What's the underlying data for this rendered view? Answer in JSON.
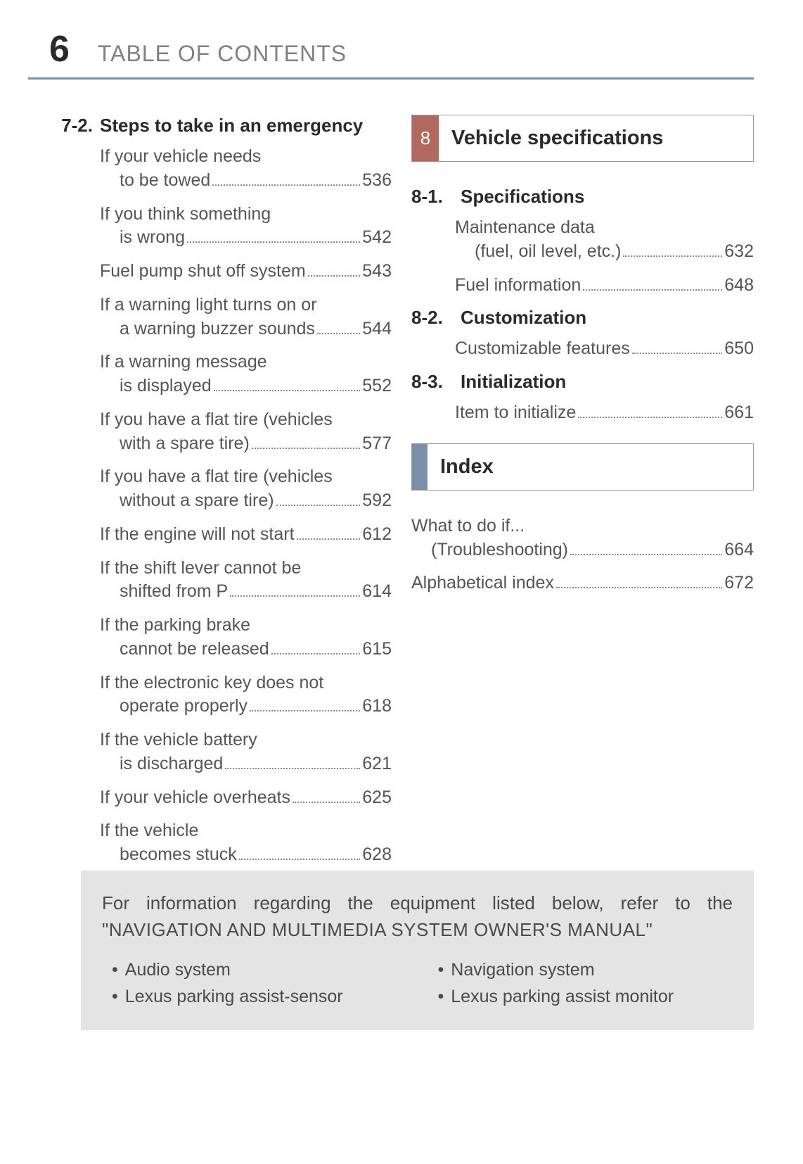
{
  "page_number": "6",
  "header_title": "TABLE OF CONTENTS",
  "colors": {
    "rule": "#7a8fa8",
    "chapter_badge": "#b0685f",
    "index_badge": "#7a8fa8",
    "footer_bg": "#e4e4e4",
    "text_body": "#555555",
    "text_heading": "#2a2a2a",
    "text_header_title": "#808080"
  },
  "left": {
    "section_num": "7-2.",
    "section_title": "Steps to take in an emergency",
    "items": [
      {
        "l1": "If your vehicle needs",
        "l2": "to be towed",
        "page": "536"
      },
      {
        "l1": "If you think something",
        "l2": "is wrong",
        "page": "542"
      },
      {
        "l1": "Fuel pump shut off system",
        "page": "543"
      },
      {
        "l1": "If a warning light turns on or",
        "l2": "a warning buzzer sounds",
        "page": "544"
      },
      {
        "l1": "If a warning message",
        "l2": "is displayed",
        "page": "552"
      },
      {
        "l1": "If you have a flat tire (vehicles",
        "l2": "with a spare tire)",
        "page": "577"
      },
      {
        "l1": "If you have a flat tire (vehicles",
        "l2": "without a spare tire)",
        "page": "592"
      },
      {
        "l1": "If the engine will not start",
        "page": "612"
      },
      {
        "l1": "If the shift lever cannot be",
        "l2": "shifted from P",
        "page": "614"
      },
      {
        "l1": "If the parking brake",
        "l2": "cannot be released",
        "page": "615"
      },
      {
        "l1": "If the electronic key does not",
        "l2": "operate properly",
        "page": "618"
      },
      {
        "l1": "If the vehicle battery",
        "l2": "is discharged",
        "page": "621"
      },
      {
        "l1": "If your vehicle overheats",
        "page": "625"
      },
      {
        "l1": "If the vehicle",
        "l2": "becomes stuck",
        "page": "628"
      }
    ]
  },
  "right": {
    "chapter_badge": "8",
    "chapter_label": "Vehicle specifications",
    "sections": [
      {
        "num": "8-1.",
        "title": "Specifications",
        "items": [
          {
            "l1": "Maintenance data",
            "l2": "(fuel, oil level, etc.)",
            "page": "632"
          },
          {
            "l1": "Fuel information",
            "page": "648"
          }
        ]
      },
      {
        "num": "8-2.",
        "title": "Customization",
        "items": [
          {
            "l1": "Customizable features",
            "page": "650"
          }
        ]
      },
      {
        "num": "8-3.",
        "title": "Initialization",
        "items": [
          {
            "l1": "Item to initialize",
            "page": "661"
          }
        ]
      }
    ],
    "index_label": "Index",
    "index_items": [
      {
        "l1": "What to do if...",
        "l2": "(Troubleshooting)",
        "page": "664"
      },
      {
        "l1": "Alphabetical index",
        "page": "672"
      }
    ]
  },
  "footer": {
    "intro_plain": "For information regarding the equipment listed below, refer to the ",
    "intro_caps": "\"NAVIGATION AND MULTIMEDIA SYSTEM OWNER'S MANUAL\"",
    "bullets_left": [
      "Audio system",
      "Lexus parking assist-sensor"
    ],
    "bullets_right": [
      "Navigation system",
      "Lexus parking assist monitor"
    ]
  }
}
